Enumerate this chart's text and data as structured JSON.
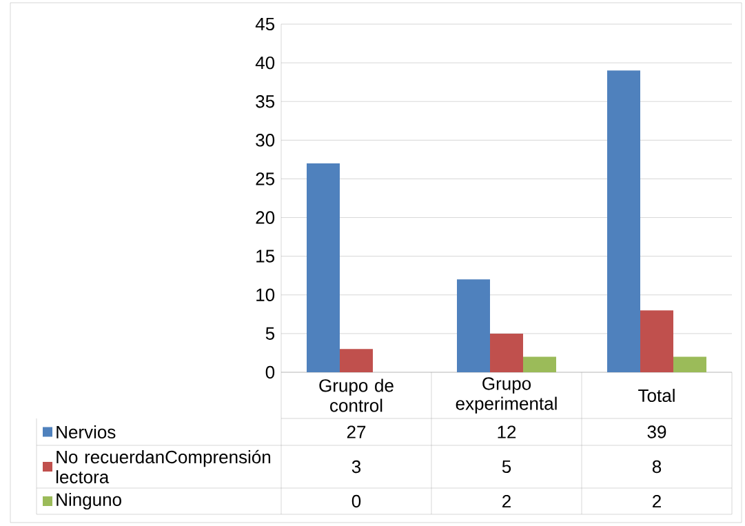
{
  "chart_data": {
    "type": "bar",
    "categories": [
      "Grupo de control",
      "Grupo experimental",
      "Total"
    ],
    "series": [
      {
        "name": "Nervios",
        "color": "#4f81bd",
        "values": [
          27,
          12,
          39
        ]
      },
      {
        "name": "No recuerdanComprensión lectora",
        "color": "#c0504d",
        "values": [
          3,
          5,
          8
        ]
      },
      {
        "name": "Ninguno",
        "color": "#9bbb59",
        "values": [
          0,
          2,
          2
        ]
      }
    ],
    "ylim": [
      0,
      45
    ],
    "yticks": [
      0,
      5,
      10,
      15,
      20,
      25,
      30,
      35,
      40,
      45
    ],
    "grid": "y",
    "legend": "bottom left",
    "data_labels": true
  }
}
